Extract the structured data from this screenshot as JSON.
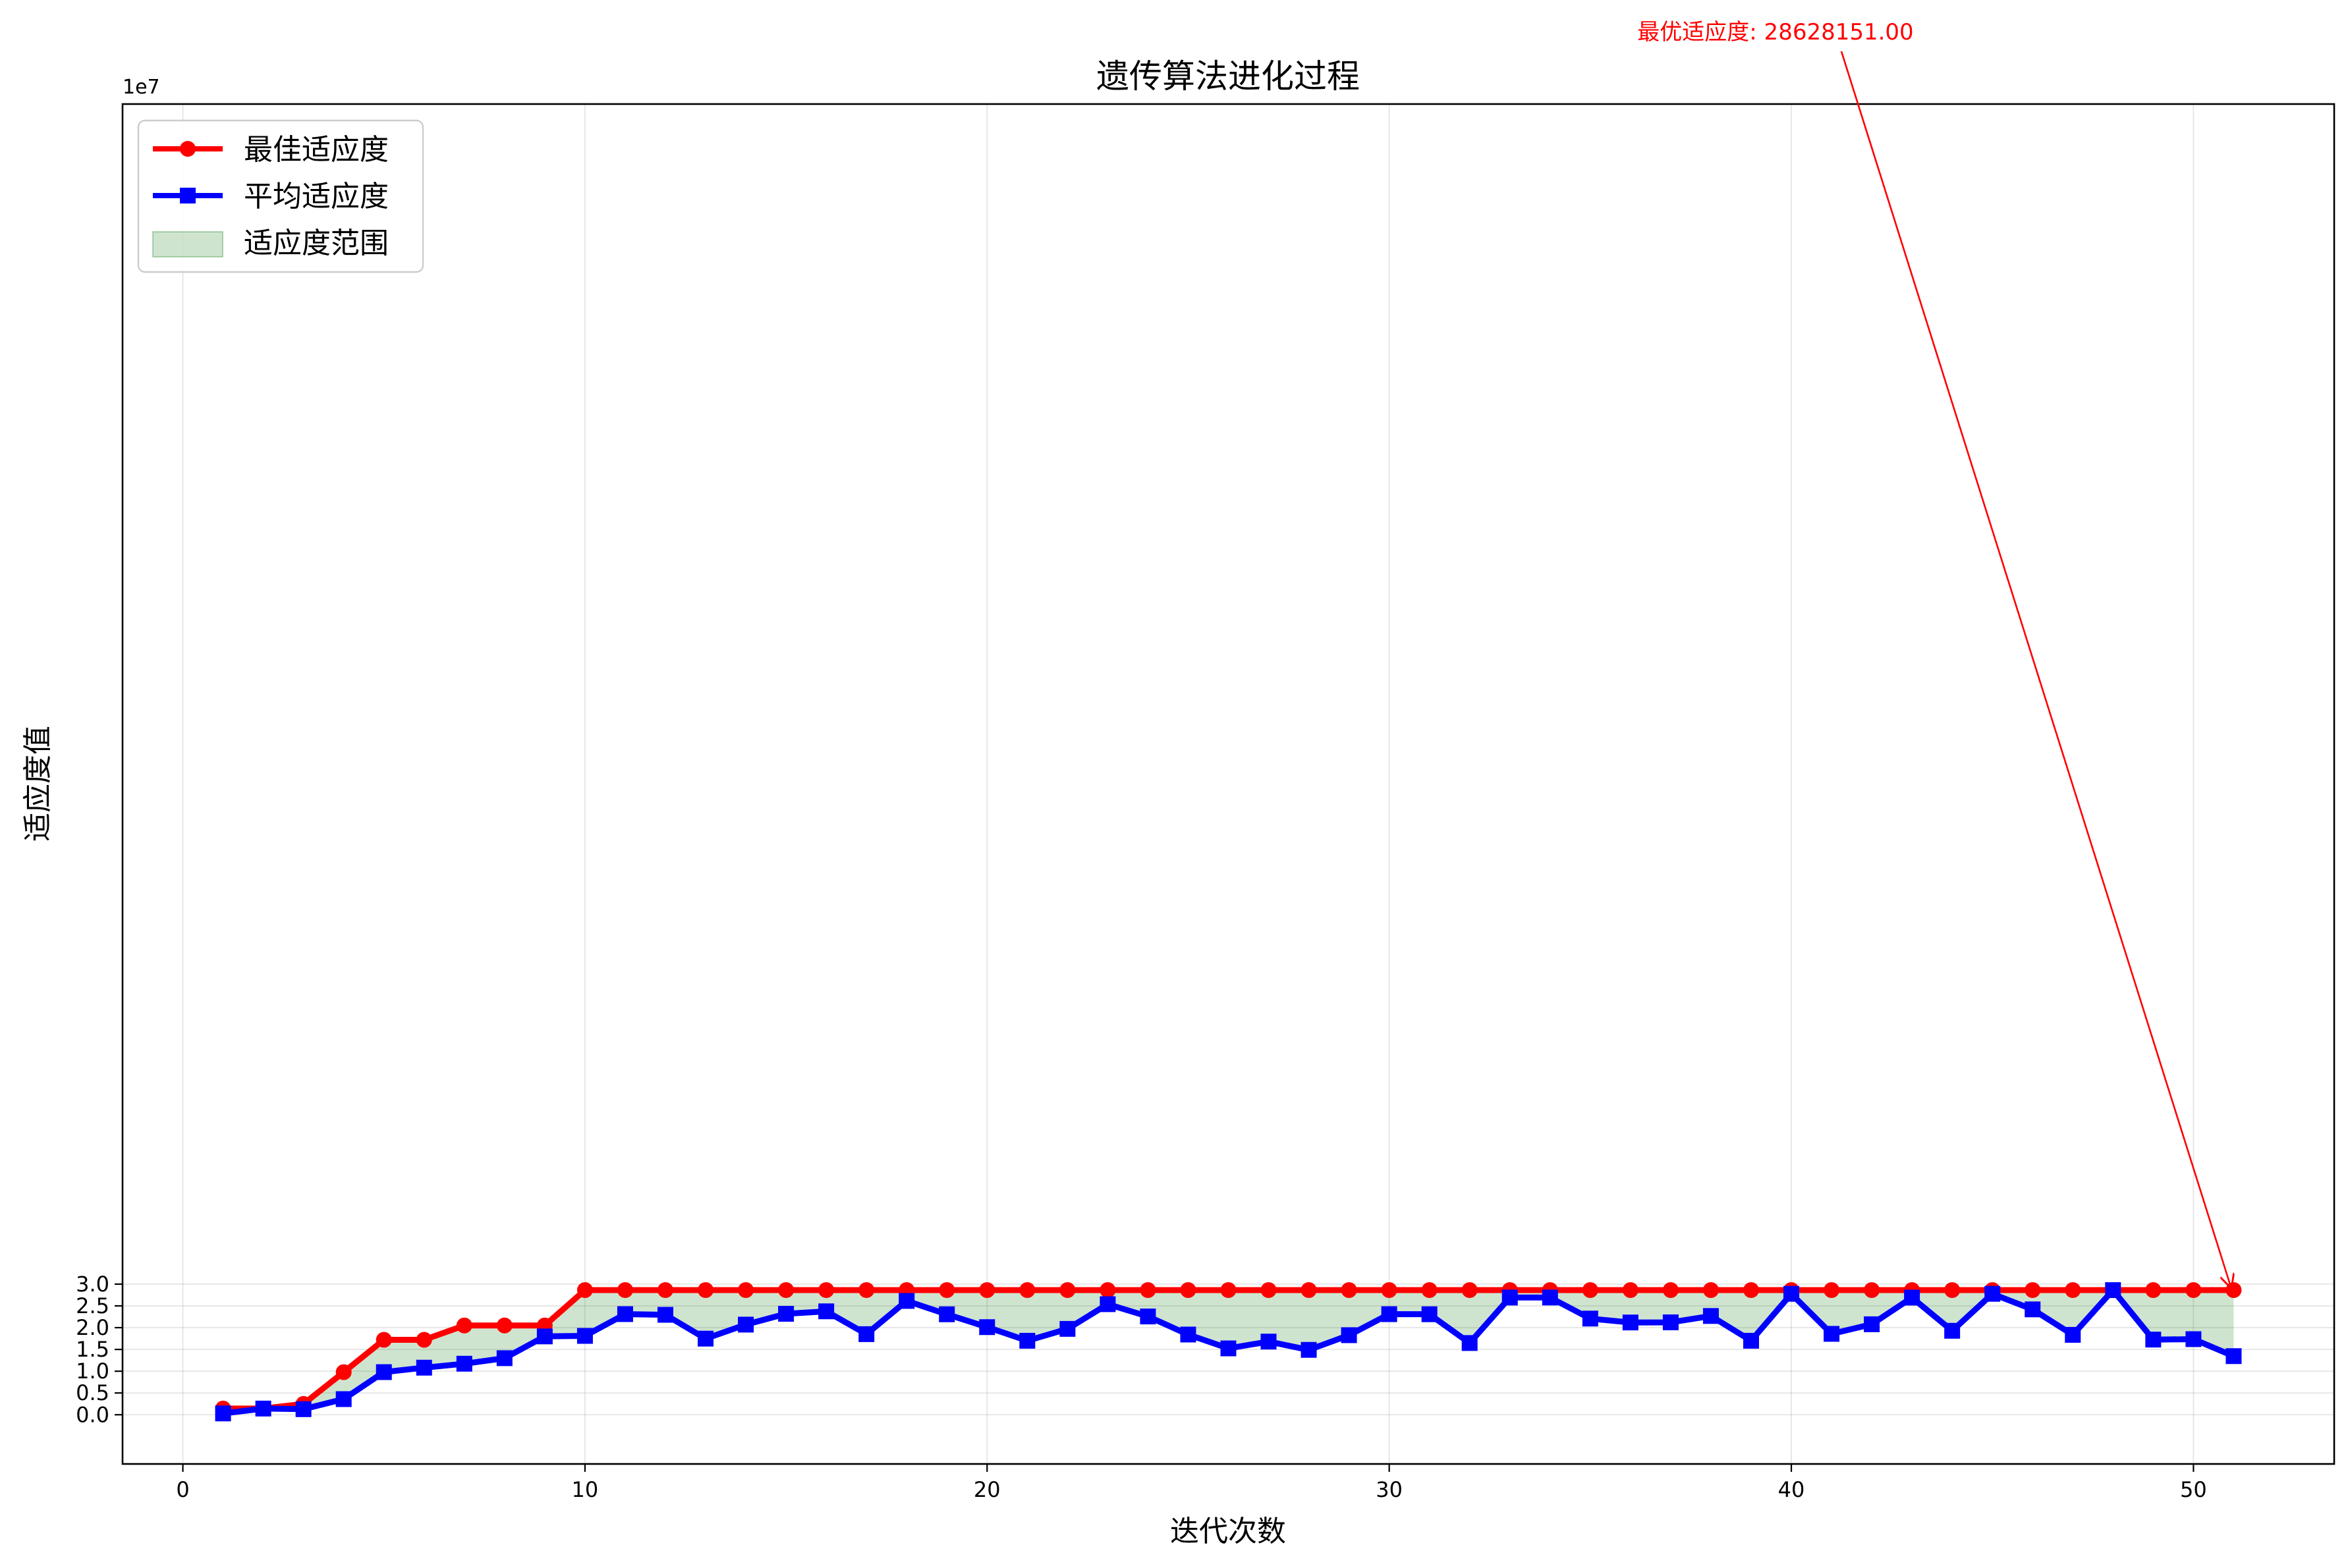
{
  "chart_data": {
    "type": "line",
    "title": "遗传算法进化过程",
    "xlabel": "迭代次数",
    "ylabel": "适应度值",
    "y_offset_text": "1e7",
    "y_scale": 10000000,
    "xlim": [
      -1.5,
      53.5
    ],
    "ylim": [
      -1.13,
      30.1
    ],
    "x_ticks": [
      0,
      10,
      20,
      30,
      40,
      50
    ],
    "x_tick_labels": [
      "0",
      "10",
      "20",
      "30",
      "40",
      "50"
    ],
    "y_ticks": [
      0,
      5000000,
      10000000,
      15000000,
      20000000,
      25000000,
      30000000
    ],
    "y_tick_labels": [
      "0.0",
      "0.5",
      "1.0",
      "1.5",
      "2.0",
      "2.5",
      "3.0"
    ],
    "grid": true,
    "legend_position": "top-left",
    "x": [
      1,
      2,
      3,
      4,
      5,
      6,
      7,
      8,
      9,
      10,
      11,
      12,
      13,
      14,
      15,
      16,
      17,
      18,
      19,
      20,
      21,
      22,
      23,
      24,
      25,
      26,
      27,
      28,
      29,
      30,
      31,
      32,
      33,
      34,
      35,
      36,
      37,
      38,
      39,
      40,
      41,
      42,
      43,
      44,
      45,
      46,
      47,
      48,
      49,
      50,
      51
    ],
    "series": [
      {
        "name": "最佳适应度",
        "color": "#ff0000",
        "marker": "circle",
        "values": [
          1420000,
          1420000,
          2480000,
          9780000,
          17210000,
          17210000,
          20500000,
          20500000,
          20500000,
          28628151,
          28628151,
          28628151,
          28628151,
          28628151,
          28628151,
          28628151,
          28628151,
          28628151,
          28628151,
          28628151,
          28628151,
          28628151,
          28628151,
          28628151,
          28628151,
          28628151,
          28628151,
          28628151,
          28628151,
          28628151,
          28628151,
          28628151,
          28628151,
          28628151,
          28628151,
          28628151,
          28628151,
          28628151,
          28628151,
          28628151,
          28628151,
          28628151,
          28628151,
          28628151,
          28628151,
          28628151,
          28628151,
          28628151,
          28628151,
          28628151,
          28628151
        ]
      },
      {
        "name": "平均适应度",
        "color": "#0000ff",
        "marker": "square",
        "values": [
          300000,
          1420000,
          1280000,
          3590000,
          9790000,
          10810000,
          11720000,
          12990000,
          17990000,
          18110000,
          23110000,
          22950000,
          17480000,
          20700000,
          23180000,
          23750000,
          18510000,
          26140000,
          23070000,
          20120000,
          16990000,
          19720000,
          25390000,
          22570000,
          18420000,
          15240000,
          16800000,
          14900000,
          18270000,
          23100000,
          23080000,
          16470000,
          26910000,
          26920000,
          22080000,
          21190000,
          21220000,
          22680000,
          16990000,
          27770000,
          18580000,
          20780000,
          26900000,
          19280000,
          27770000,
          24200000,
          18350000,
          28620000,
          17260000,
          17360000,
          13460000
        ]
      }
    ],
    "fill": {
      "name": "适应度范围",
      "color": "#2e8b2e",
      "opacity": 0.23,
      "between": [
        "最佳适应度",
        "平均适应度"
      ]
    },
    "annotation": {
      "text": "最优适应度: 28628151.00",
      "color": "#ff0000",
      "point_x": 51,
      "point_y": 28628151
    }
  }
}
